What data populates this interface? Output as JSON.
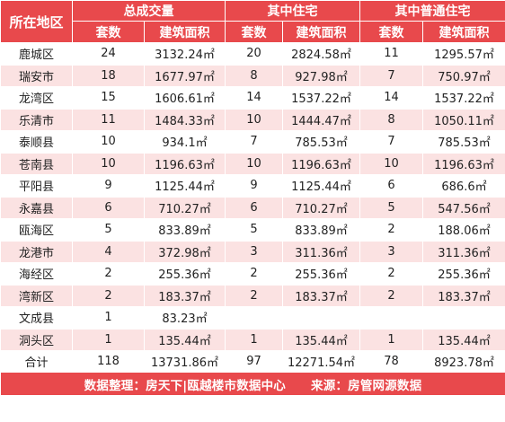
{
  "header": {
    "region": "所在地区",
    "groups": [
      "总成交量",
      "其中住宅",
      "其中普通住宅"
    ],
    "sub_count": "套数",
    "sub_area": "建筑面积"
  },
  "rows": [
    {
      "region": "鹿城区",
      "total_count": "24",
      "total_area": "3132.24㎡",
      "res_count": "20",
      "res_area": "2824.58㎡",
      "ord_count": "11",
      "ord_area": "1295.57㎡"
    },
    {
      "region": "瑞安市",
      "total_count": "18",
      "total_area": "1677.97㎡",
      "res_count": "8",
      "res_area": "927.98㎡",
      "ord_count": "7",
      "ord_area": "750.97㎡"
    },
    {
      "region": "龙湾区",
      "total_count": "15",
      "total_area": "1606.61㎡",
      "res_count": "14",
      "res_area": "1537.22㎡",
      "ord_count": "14",
      "ord_area": "1537.22㎡"
    },
    {
      "region": "乐清市",
      "total_count": "11",
      "total_area": "1484.33㎡",
      "res_count": "10",
      "res_area": "1444.47㎡",
      "ord_count": "8",
      "ord_area": "1050.11㎡"
    },
    {
      "region": "泰顺县",
      "total_count": "10",
      "total_area": "934.1㎡",
      "res_count": "7",
      "res_area": "785.53㎡",
      "ord_count": "7",
      "ord_area": "785.53㎡"
    },
    {
      "region": "苍南县",
      "total_count": "10",
      "total_area": "1196.63㎡",
      "res_count": "10",
      "res_area": "1196.63㎡",
      "ord_count": "10",
      "ord_area": "1196.63㎡"
    },
    {
      "region": "平阳县",
      "total_count": "9",
      "total_area": "1125.44㎡",
      "res_count": "9",
      "res_area": "1125.44㎡",
      "ord_count": "6",
      "ord_area": "686.6㎡"
    },
    {
      "region": "永嘉县",
      "total_count": "6",
      "total_area": "710.27㎡",
      "res_count": "6",
      "res_area": "710.27㎡",
      "ord_count": "5",
      "ord_area": "547.56㎡"
    },
    {
      "region": "瓯海区",
      "total_count": "5",
      "total_area": "833.89㎡",
      "res_count": "5",
      "res_area": "833.89㎡",
      "ord_count": "2",
      "ord_area": "188.06㎡"
    },
    {
      "region": "龙港市",
      "total_count": "4",
      "total_area": "372.98㎡",
      "res_count": "3",
      "res_area": "311.36㎡",
      "ord_count": "3",
      "ord_area": "311.36㎡"
    },
    {
      "region": "海经区",
      "total_count": "2",
      "total_area": "255.36㎡",
      "res_count": "2",
      "res_area": "255.36㎡",
      "ord_count": "2",
      "ord_area": "255.36㎡"
    },
    {
      "region": "湾新区",
      "total_count": "2",
      "total_area": "183.37㎡",
      "res_count": "2",
      "res_area": "183.37㎡",
      "ord_count": "2",
      "ord_area": "183.37㎡"
    },
    {
      "region": "文成县",
      "total_count": "1",
      "total_area": "83.23㎡",
      "res_count": "",
      "res_area": "",
      "ord_count": "",
      "ord_area": ""
    },
    {
      "region": "洞头区",
      "total_count": "1",
      "total_area": "135.44㎡",
      "res_count": "1",
      "res_area": "135.44㎡",
      "ord_count": "1",
      "ord_area": "135.44㎡"
    }
  ],
  "total": {
    "label": "合计",
    "total_count": "118",
    "total_area": "13731.86㎡",
    "res_count": "97",
    "res_area": "12271.54㎡",
    "ord_count": "78",
    "ord_area": "8923.78㎡"
  },
  "footer": {
    "organizer": "数据整理：房天下|瓯越楼市数据中心",
    "source": "来源：房管网源数据"
  },
  "colors": {
    "header_bg": "#e8494c",
    "stripe_bg": "#fbe2e2"
  }
}
